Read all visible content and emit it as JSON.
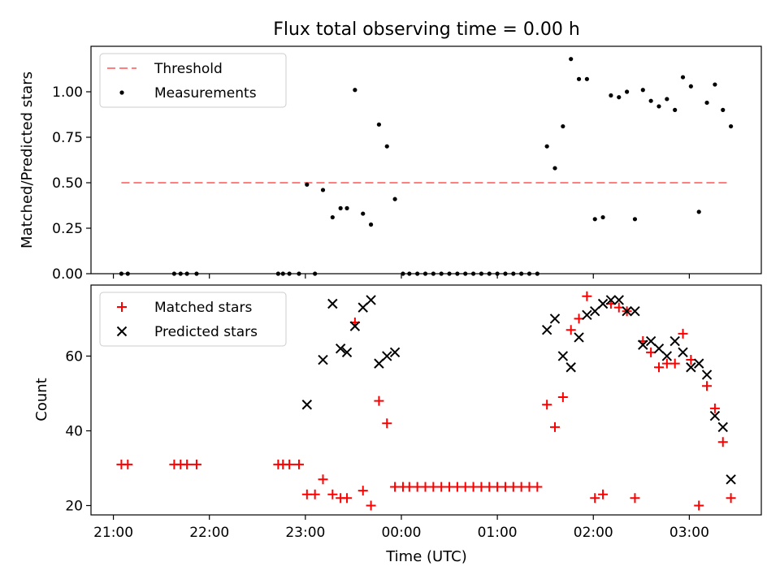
{
  "chart_data": {
    "type": "scatter",
    "title": "Flux total observing time = 0.00 h",
    "x_unit": "Time (UTC)",
    "x_range": [
      "20:46",
      "03:45"
    ],
    "x_ticks": [
      "21:00",
      "22:00",
      "23:00",
      "00:00",
      "01:00",
      "02:00",
      "03:00"
    ],
    "xlabel": "Time (UTC)",
    "panels": [
      {
        "name": "ratio",
        "ylabel": "Matched/Predicted stars",
        "ylim": [
          0,
          1.25
        ],
        "y_ticks": [
          "0.00",
          "0.25",
          "0.50",
          "0.75",
          "1.00"
        ],
        "y_tick_values": [
          0,
          0.25,
          0.5,
          0.75,
          1.0
        ],
        "legend": "top-left",
        "series": [
          {
            "name": "Threshold",
            "style": "dashed-line",
            "color": "#ff7f7f",
            "points": [
              [
                "21:05",
                0.5
              ],
              [
                "03:25",
                0.5
              ]
            ]
          },
          {
            "name": "Measurements",
            "style": "dot",
            "color": "#000000",
            "points": [
              [
                "21:05",
                0
              ],
              [
                "21:09",
                0
              ],
              [
                "21:38",
                0
              ],
              [
                "21:42",
                0
              ],
              [
                "21:46",
                0
              ],
              [
                "21:52",
                0
              ],
              [
                "22:43",
                0
              ],
              [
                "22:46",
                0
              ],
              [
                "22:50",
                0
              ],
              [
                "22:56",
                0
              ],
              [
                "23:01",
                0.49
              ],
              [
                "23:06",
                0
              ],
              [
                "23:11",
                0.46
              ],
              [
                "23:17",
                0.31
              ],
              [
                "23:22",
                0.36
              ],
              [
                "23:26",
                0.36
              ],
              [
                "23:31",
                1.01
              ],
              [
                "23:36",
                0.33
              ],
              [
                "23:41",
                0.27
              ],
              [
                "23:46",
                0.82
              ],
              [
                "23:51",
                0.7
              ],
              [
                "23:56",
                0.41
              ],
              [
                "00:01",
                0
              ],
              [
                "00:05",
                0
              ],
              [
                "00:10",
                0
              ],
              [
                "00:15",
                0
              ],
              [
                "00:20",
                0
              ],
              [
                "00:25",
                0
              ],
              [
                "00:30",
                0
              ],
              [
                "00:35",
                0
              ],
              [
                "00:40",
                0
              ],
              [
                "00:45",
                0
              ],
              [
                "00:50",
                0
              ],
              [
                "00:55",
                0
              ],
              [
                "01:00",
                0
              ],
              [
                "01:05",
                0
              ],
              [
                "01:10",
                0
              ],
              [
                "01:15",
                0
              ],
              [
                "01:20",
                0
              ],
              [
                "01:25",
                0
              ],
              [
                "01:31",
                0.7
              ],
              [
                "01:36",
                0.58
              ],
              [
                "01:41",
                0.81
              ],
              [
                "01:46",
                1.18
              ],
              [
                "01:51",
                1.07
              ],
              [
                "01:56",
                1.07
              ],
              [
                "02:01",
                0.3
              ],
              [
                "02:06",
                0.31
              ],
              [
                "02:11",
                0.98
              ],
              [
                "02:16",
                0.97
              ],
              [
                "02:21",
                1.0
              ],
              [
                "02:26",
                0.3
              ],
              [
                "02:31",
                1.01
              ],
              [
                "02:36",
                0.95
              ],
              [
                "02:41",
                0.92
              ],
              [
                "02:46",
                0.96
              ],
              [
                "02:51",
                0.9
              ],
              [
                "02:56",
                1.08
              ],
              [
                "03:01",
                1.03
              ],
              [
                "03:06",
                0.34
              ],
              [
                "03:11",
                0.94
              ],
              [
                "03:16",
                1.04
              ],
              [
                "03:21",
                0.9
              ],
              [
                "03:26",
                0.81
              ]
            ]
          }
        ]
      },
      {
        "name": "count",
        "ylabel": "Count",
        "ylim": [
          17.5,
          79
        ],
        "y_ticks": [
          "20",
          "40",
          "60"
        ],
        "y_tick_values": [
          20,
          40,
          60
        ],
        "legend": "top-left",
        "series": [
          {
            "name": "Matched stars",
            "style": "plus",
            "color": "#ff0000",
            "points": [
              [
                "21:05",
                31
              ],
              [
                "21:09",
                31
              ],
              [
                "21:38",
                31
              ],
              [
                "21:42",
                31
              ],
              [
                "21:46",
                31
              ],
              [
                "21:52",
                31
              ],
              [
                "22:43",
                31
              ],
              [
                "22:46",
                31
              ],
              [
                "22:50",
                31
              ],
              [
                "22:56",
                31
              ],
              [
                "23:01",
                23
              ],
              [
                "23:06",
                23
              ],
              [
                "23:11",
                27
              ],
              [
                "23:17",
                23
              ],
              [
                "23:22",
                22
              ],
              [
                "23:26",
                22
              ],
              [
                "23:31",
                69
              ],
              [
                "23:36",
                24
              ],
              [
                "23:41",
                20
              ],
              [
                "23:46",
                48
              ],
              [
                "23:51",
                42
              ],
              [
                "23:56",
                25
              ],
              [
                "00:01",
                25
              ],
              [
                "00:05",
                25
              ],
              [
                "00:10",
                25
              ],
              [
                "00:15",
                25
              ],
              [
                "00:20",
                25
              ],
              [
                "00:25",
                25
              ],
              [
                "00:30",
                25
              ],
              [
                "00:35",
                25
              ],
              [
                "00:40",
                25
              ],
              [
                "00:45",
                25
              ],
              [
                "00:50",
                25
              ],
              [
                "00:55",
                25
              ],
              [
                "01:00",
                25
              ],
              [
                "01:05",
                25
              ],
              [
                "01:10",
                25
              ],
              [
                "01:15",
                25
              ],
              [
                "01:20",
                25
              ],
              [
                "01:25",
                25
              ],
              [
                "01:31",
                47
              ],
              [
                "01:36",
                41
              ],
              [
                "01:41",
                49
              ],
              [
                "01:46",
                67
              ],
              [
                "01:51",
                70
              ],
              [
                "01:56",
                76
              ],
              [
                "02:01",
                22
              ],
              [
                "02:06",
                23
              ],
              [
                "02:11",
                74
              ],
              [
                "02:16",
                73
              ],
              [
                "02:21",
                72
              ],
              [
                "02:26",
                22
              ],
              [
                "02:31",
                64
              ],
              [
                "02:36",
                61
              ],
              [
                "02:41",
                57
              ],
              [
                "02:46",
                58
              ],
              [
                "02:51",
                58
              ],
              [
                "02:56",
                66
              ],
              [
                "03:01",
                59
              ],
              [
                "03:06",
                20
              ],
              [
                "03:11",
                52
              ],
              [
                "03:16",
                46
              ],
              [
                "03:21",
                37
              ],
              [
                "03:26",
                22
              ]
            ]
          },
          {
            "name": "Predicted stars",
            "style": "x",
            "color": "#000000",
            "points": [
              [
                "23:01",
                47
              ],
              [
                "23:11",
                59
              ],
              [
                "23:17",
                74
              ],
              [
                "23:22",
                62
              ],
              [
                "23:26",
                61
              ],
              [
                "23:31",
                68
              ],
              [
                "23:36",
                73
              ],
              [
                "23:41",
                75
              ],
              [
                "23:46",
                58
              ],
              [
                "23:51",
                60
              ],
              [
                "23:56",
                61
              ],
              [
                "01:31",
                67
              ],
              [
                "01:36",
                70
              ],
              [
                "01:41",
                60
              ],
              [
                "01:46",
                57
              ],
              [
                "01:51",
                65
              ],
              [
                "01:56",
                71
              ],
              [
                "02:01",
                72
              ],
              [
                "02:06",
                74
              ],
              [
                "02:11",
                75
              ],
              [
                "02:16",
                75
              ],
              [
                "02:21",
                72
              ],
              [
                "02:26",
                72
              ],
              [
                "02:31",
                63
              ],
              [
                "02:36",
                64
              ],
              [
                "02:41",
                62
              ],
              [
                "02:46",
                60
              ],
              [
                "02:51",
                64
              ],
              [
                "02:56",
                61
              ],
              [
                "03:01",
                57
              ],
              [
                "03:06",
                58
              ],
              [
                "03:11",
                55
              ],
              [
                "03:16",
                44
              ],
              [
                "03:21",
                41
              ],
              [
                "03:26",
                27
              ]
            ]
          }
        ]
      }
    ]
  }
}
